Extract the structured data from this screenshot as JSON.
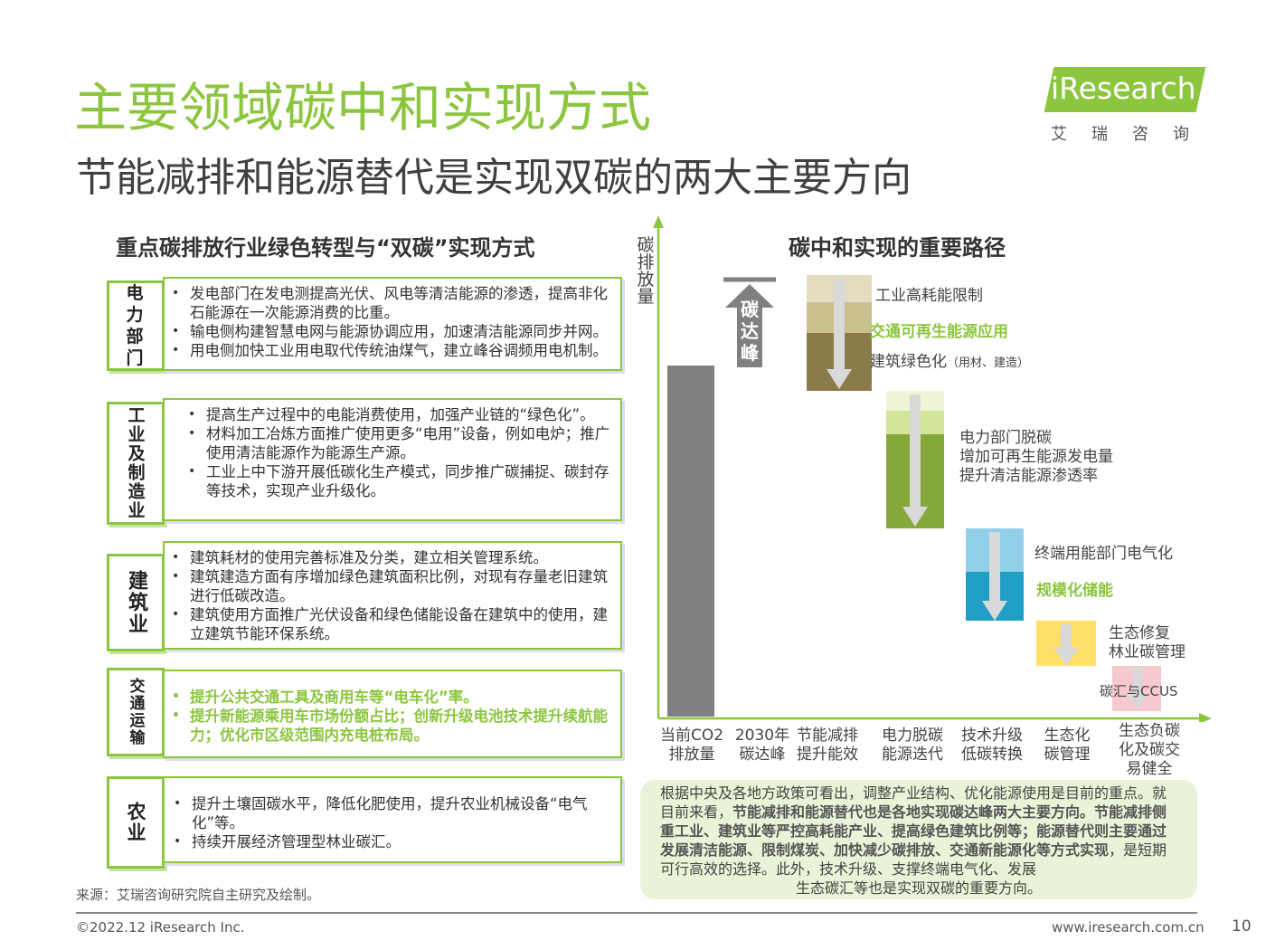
{
  "header": {
    "title": "主要领域碳中和实现方式",
    "subtitle": "节能减排和能源替代是实现双碳的两大主要方向"
  },
  "logo": {
    "brand": "iResearch",
    "cn": "艾瑞咨询"
  },
  "left_panel": {
    "title": "重点碳排放行业绿色转型与“双碳”实现方式",
    "sectors": [
      {
        "label": "电力部门",
        "items": [
          "发电部门在发电测提高光伏、风电等清洁能源的渗透，提高非化石能源在一次能源消费的比重。",
          "输电侧构建智慧电网与能源协调应用，加速清洁能源同步并网。",
          "用电侧加快工业用电取代传统油煤气，建立峰谷调频用电机制。"
        ]
      },
      {
        "label": "工业及制造业",
        "items": [
          "提高生产过程中的电能消费使用，加强产业链的“绿色化”。",
          "材料加工冶炼方面推广使用更多“电用”设备，例如电炉；推广使用清洁能源作为能源生产源。",
          "工业上中下游开展低碳化生产模式，同步推广碳捕捉、碳封存等技术，实现产业升级化。"
        ]
      },
      {
        "label": "建筑业",
        "items": [
          "建筑耗材的使用完善标准及分类，建立相关管理系统。",
          "建筑建造方面有序增加绿色建筑面积比例，对现有存量老旧建筑进行低碳改造。",
          "建筑使用方面推广光伏设备和绿色储能设备在建筑中的使用，建立建筑节能环保系统。"
        ]
      },
      {
        "label": "交通运输",
        "items": [
          "提升公共交通工具及商用车等“电车化”率。",
          "提升新能源乘用车市场份额占比；创新升级电池技术提升续航能力；优化市区级范围内充电桩布局。"
        ]
      },
      {
        "label": "农业",
        "items": [
          "提升土壤固碳水平，降低化肥使用，提升农业机械设备“电气化”等。",
          "持续开展经济管理型林业碳汇。"
        ]
      }
    ]
  },
  "right_panel": {
    "title": "碳中和实现的重要路径",
    "y_axis_label": "碳排放量",
    "peak_label": "碳达峰",
    "stages": [
      "当前CO2排放量",
      "2030年碳达峰",
      "节能减排提升能效",
      "电力脱碳能源迭代",
      "技术升级低碳转换",
      "生态化碳管理",
      "生态负碳化及碳交易健全"
    ],
    "segment_labels": {
      "s1": [
        "工业高耗能限制",
        "交通可再生能源应用",
        "建筑绿色化",
        "（用材、建造）"
      ],
      "s2": [
        "电力部门脱碳",
        "增加可再生能源发电量",
        "提升清洁能源渗透率"
      ],
      "s3": [
        "终端用能部门电气化",
        "规模化储能"
      ],
      "s4": [
        "生态修复",
        "林业碳管理"
      ],
      "s5": [
        "碳汇与CCUS"
      ]
    },
    "colors": {
      "bar": "#7f7f7f",
      "tan": "#c9bf8f",
      "olive": "#8c7b4a",
      "green": "#86a83a",
      "lightgreen": "#d4e49a",
      "lightblue": "#92d0ea",
      "blue": "#1f9fc6",
      "yellow": "#ffe066",
      "pink": "#f5c9cd"
    }
  },
  "note": {
    "p1": "根据中央及各地方政策可看出，调整产业结构、优化能源使用是目前的重点。就目前来看，",
    "b1": "节能减排和能源替代也是各地实现碳达峰两大主要方向。节能减排侧重工业、建筑业等严控高耗能产业、提高绿色建筑比例等；能源替代则主要通过发展清洁能源、限制煤炭、加快减少碳排放、交通新能源化等方式实现",
    "p2": "，是短期可行高效的选择。此外，技术升级、支撑终端电气化、发展",
    "p3": "生态碳汇等也是实现双碳的重要方向。"
  },
  "footer": {
    "source": "来源：艾瑞咨询研究院自主研究及绘制。",
    "copyright": "©2022.12  iResearch Inc.",
    "website": "www.iresearch.com.cn",
    "page": "10"
  }
}
